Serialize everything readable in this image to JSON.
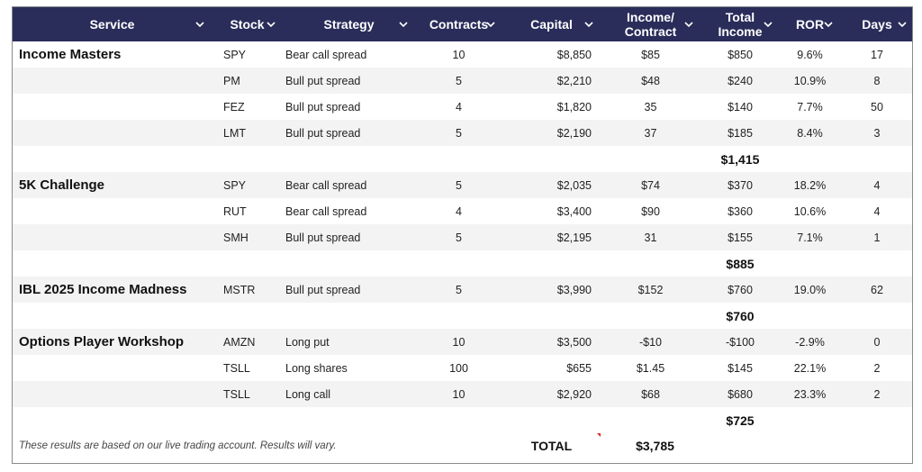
{
  "columns": [
    {
      "label": "Service",
      "key": "service"
    },
    {
      "label": "Stock",
      "key": "stock"
    },
    {
      "label": "Strategy",
      "key": "strategy"
    },
    {
      "label": "Contracts",
      "key": "contracts"
    },
    {
      "label": "Capital",
      "key": "capital"
    },
    {
      "label": "Income/\nContract",
      "key": "income_contract"
    },
    {
      "label": "Total\nIncome",
      "key": "total_income"
    },
    {
      "label": "ROR",
      "key": "ror"
    },
    {
      "label": "Days",
      "key": "days"
    }
  ],
  "rows": [
    {
      "type": "data",
      "alt": false,
      "service": "Income Masters",
      "stock": "SPY",
      "strategy": "Bear call spread",
      "contracts": "10",
      "capital": "$8,850",
      "income_contract": "$85",
      "total_income": "$850",
      "ror": "9.6%",
      "days": "17"
    },
    {
      "type": "data",
      "alt": true,
      "service": "",
      "stock": "PM",
      "strategy": "Bull put spread",
      "contracts": "5",
      "capital": "$2,210",
      "income_contract": "$48",
      "total_income": "$240",
      "ror": "10.9%",
      "days": "8"
    },
    {
      "type": "data",
      "alt": false,
      "service": "",
      "stock": "FEZ",
      "strategy": "Bull put spread",
      "contracts": "4",
      "capital": "$1,820",
      "income_contract": "35",
      "total_income": "$140",
      "ror": "7.7%",
      "days": "50"
    },
    {
      "type": "data",
      "alt": true,
      "service": "",
      "stock": "LMT",
      "strategy": "Bull put spread",
      "contracts": "5",
      "capital": "$2,190",
      "income_contract": "37",
      "total_income": "$185",
      "ror": "8.4%",
      "days": "3"
    },
    {
      "type": "subtotal",
      "alt": false,
      "value": "$1,415"
    },
    {
      "type": "data",
      "alt": true,
      "service": "5K Challenge",
      "stock": "SPY",
      "strategy": "Bear call spread",
      "contracts": "5",
      "capital": "$2,035",
      "income_contract": "$74",
      "total_income": "$370",
      "ror": "18.2%",
      "days": "4"
    },
    {
      "type": "data",
      "alt": false,
      "service": "",
      "stock": "RUT",
      "strategy": "Bear call spread",
      "contracts": "4",
      "capital": "$3,400",
      "income_contract": "$90",
      "total_income": "$360",
      "ror": "10.6%",
      "days": "4"
    },
    {
      "type": "data",
      "alt": true,
      "service": "",
      "stock": "SMH",
      "strategy": "Bull put spread",
      "contracts": "5",
      "capital": "$2,195",
      "income_contract": "31",
      "total_income": "$155",
      "ror": "7.1%",
      "days": "1"
    },
    {
      "type": "subtotal",
      "alt": false,
      "value": "$885"
    },
    {
      "type": "data",
      "alt": true,
      "service": "IBL 2025 Income Madness",
      "stock": "MSTR",
      "strategy": "Bull put spread",
      "contracts": "5",
      "capital": "$3,990",
      "income_contract": "$152",
      "total_income": "$760",
      "ror": "19.0%",
      "days": "62"
    },
    {
      "type": "subtotal",
      "alt": false,
      "value": "$760"
    },
    {
      "type": "data",
      "alt": true,
      "service": "Options Player Workshop",
      "stock": "AMZN",
      "strategy": "Long put",
      "contracts": "10",
      "capital": "$3,500",
      "income_contract": "-$10",
      "total_income": "-$100",
      "ror": "-2.9%",
      "days": "0"
    },
    {
      "type": "data",
      "alt": false,
      "service": "",
      "stock": "TSLL",
      "strategy": "Long shares",
      "contracts": "100",
      "capital": "$655",
      "income_contract": "$1.45",
      "total_income": "$145",
      "ror": "22.1%",
      "days": "2"
    },
    {
      "type": "data",
      "alt": true,
      "service": "",
      "stock": "TSLL",
      "strategy": "Long call",
      "contracts": "10",
      "capital": "$2,920",
      "income_contract": "$68",
      "total_income": "$680",
      "ror": "23.3%",
      "days": "2"
    },
    {
      "type": "subtotal",
      "alt": false,
      "value": "$725"
    }
  ],
  "footer": {
    "note": "These results are based on our live trading account. Results will vary.",
    "total_label": "TOTAL",
    "total_value": "$3,785"
  },
  "colors": {
    "header_bg": "#2a2d5a",
    "alt_row": "#f3f3f3",
    "red_mark": "#e0241b"
  }
}
